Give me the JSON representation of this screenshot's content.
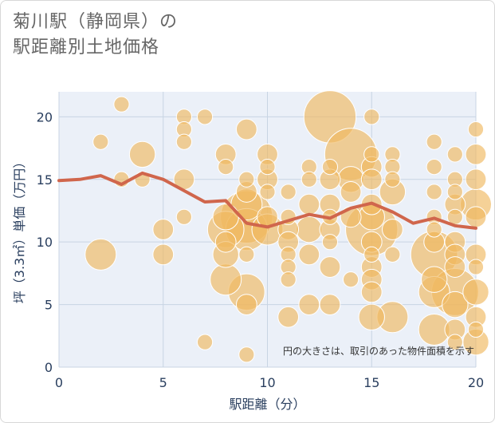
{
  "title_line1": "菊川駅（静岡県）の",
  "title_line2": "駅距離別土地価格",
  "chart_data": {
    "type": "scatter",
    "xlabel": "駅距離（分）",
    "ylabel": "坪（3.3㎡）単価（万円）",
    "xlim": [
      0,
      20
    ],
    "ylim": [
      0,
      22
    ],
    "x_ticks": [
      "0",
      "5",
      "10",
      "15",
      "20"
    ],
    "y_ticks": [
      "0",
      "5",
      "10",
      "15",
      "20"
    ],
    "annotation": "円の大きさは、取引のあった物件面積を示す",
    "colors": {
      "bubble": "#f0b860",
      "bubble_edge": "#ffffff",
      "line": "#d0664c",
      "plot_bg": "#ebf0f8",
      "grid": "#c8d4e3"
    },
    "bubbles": [
      {
        "x": 2,
        "y": 18,
        "s": 2
      },
      {
        "x": 2,
        "y": 9,
        "s": 5
      },
      {
        "x": 3,
        "y": 21,
        "s": 2
      },
      {
        "x": 3,
        "y": 15,
        "s": 2
      },
      {
        "x": 4,
        "y": 17,
        "s": 4
      },
      {
        "x": 4,
        "y": 15,
        "s": 2
      },
      {
        "x": 5,
        "y": 11,
        "s": 3
      },
      {
        "x": 5,
        "y": 9,
        "s": 3
      },
      {
        "x": 6,
        "y": 20,
        "s": 2
      },
      {
        "x": 6,
        "y": 19,
        "s": 2
      },
      {
        "x": 6,
        "y": 18,
        "s": 2
      },
      {
        "x": 6,
        "y": 15,
        "s": 3
      },
      {
        "x": 6,
        "y": 12,
        "s": 2
      },
      {
        "x": 7,
        "y": 20,
        "s": 2
      },
      {
        "x": 7,
        "y": 2,
        "s": 2
      },
      {
        "x": 8,
        "y": 17,
        "s": 3
      },
      {
        "x": 8,
        "y": 16,
        "s": 2
      },
      {
        "x": 8,
        "y": 12,
        "s": 4
      },
      {
        "x": 8,
        "y": 11,
        "s": 6
      },
      {
        "x": 8,
        "y": 10,
        "s": 3
      },
      {
        "x": 8,
        "y": 9,
        "s": 4
      },
      {
        "x": 8,
        "y": 7,
        "s": 5
      },
      {
        "x": 9,
        "y": 19,
        "s": 3
      },
      {
        "x": 9,
        "y": 15,
        "s": 2
      },
      {
        "x": 9,
        "y": 14,
        "s": 3
      },
      {
        "x": 9,
        "y": 13,
        "s": 5
      },
      {
        "x": 9,
        "y": 12,
        "s": 9
      },
      {
        "x": 9,
        "y": 11,
        "s": 7
      },
      {
        "x": 9,
        "y": 9,
        "s": 2
      },
      {
        "x": 9,
        "y": 6,
        "s": 6
      },
      {
        "x": 9,
        "y": 5,
        "s": 3
      },
      {
        "x": 9,
        "y": 1,
        "s": 2
      },
      {
        "x": 10,
        "y": 17,
        "s": 3
      },
      {
        "x": 10,
        "y": 16,
        "s": 2
      },
      {
        "x": 10,
        "y": 15,
        "s": 3
      },
      {
        "x": 10,
        "y": 14,
        "s": 2
      },
      {
        "x": 10,
        "y": 12,
        "s": 3
      },
      {
        "x": 10,
        "y": 11,
        "s": 5
      },
      {
        "x": 11,
        "y": 14,
        "s": 2
      },
      {
        "x": 11,
        "y": 12,
        "s": 2
      },
      {
        "x": 11,
        "y": 11,
        "s": 3
      },
      {
        "x": 11,
        "y": 10,
        "s": 3
      },
      {
        "x": 11,
        "y": 9,
        "s": 2
      },
      {
        "x": 11,
        "y": 8,
        "s": 2
      },
      {
        "x": 11,
        "y": 7,
        "s": 2
      },
      {
        "x": 11,
        "y": 4,
        "s": 3
      },
      {
        "x": 12,
        "y": 16,
        "s": 2
      },
      {
        "x": 12,
        "y": 15,
        "s": 2
      },
      {
        "x": 12,
        "y": 13,
        "s": 3
      },
      {
        "x": 12,
        "y": 11,
        "s": 4
      },
      {
        "x": 12,
        "y": 9,
        "s": 3
      },
      {
        "x": 12,
        "y": 5,
        "s": 3
      },
      {
        "x": 13,
        "y": 20,
        "s": 9
      },
      {
        "x": 13,
        "y": 16,
        "s": 2
      },
      {
        "x": 13,
        "y": 15,
        "s": 3
      },
      {
        "x": 13,
        "y": 13,
        "s": 3
      },
      {
        "x": 13,
        "y": 12,
        "s": 2
      },
      {
        "x": 13,
        "y": 11,
        "s": 3
      },
      {
        "x": 13,
        "y": 10,
        "s": 2
      },
      {
        "x": 13,
        "y": 8,
        "s": 3
      },
      {
        "x": 13,
        "y": 5,
        "s": 3
      },
      {
        "x": 14,
        "y": 17,
        "s": 9
      },
      {
        "x": 14,
        "y": 15,
        "s": 4
      },
      {
        "x": 14,
        "y": 14,
        "s": 3
      },
      {
        "x": 14,
        "y": 12,
        "s": 3
      },
      {
        "x": 14,
        "y": 7,
        "s": 2
      },
      {
        "x": 15,
        "y": 20,
        "s": 2
      },
      {
        "x": 15,
        "y": 17,
        "s": 2
      },
      {
        "x": 15,
        "y": 16,
        "s": 3
      },
      {
        "x": 15,
        "y": 15,
        "s": 3
      },
      {
        "x": 15,
        "y": 13,
        "s": 3
      },
      {
        "x": 15,
        "y": 12,
        "s": 4
      },
      {
        "x": 15,
        "y": 11,
        "s": 9
      },
      {
        "x": 15,
        "y": 10,
        "s": 3
      },
      {
        "x": 15,
        "y": 9,
        "s": 2
      },
      {
        "x": 15,
        "y": 8,
        "s": 3
      },
      {
        "x": 15,
        "y": 7,
        "s": 3
      },
      {
        "x": 15,
        "y": 6,
        "s": 3
      },
      {
        "x": 15,
        "y": 4,
        "s": 4
      },
      {
        "x": 16,
        "y": 17,
        "s": 2
      },
      {
        "x": 16,
        "y": 16,
        "s": 2
      },
      {
        "x": 16,
        "y": 15,
        "s": 2
      },
      {
        "x": 16,
        "y": 14,
        "s": 4
      },
      {
        "x": 16,
        "y": 11,
        "s": 3
      },
      {
        "x": 16,
        "y": 9,
        "s": 2
      },
      {
        "x": 16,
        "y": 4,
        "s": 5
      },
      {
        "x": 18,
        "y": 18,
        "s": 2
      },
      {
        "x": 18,
        "y": 16,
        "s": 2
      },
      {
        "x": 18,
        "y": 14,
        "s": 2
      },
      {
        "x": 18,
        "y": 12,
        "s": 2
      },
      {
        "x": 18,
        "y": 11,
        "s": 2
      },
      {
        "x": 18,
        "y": 10,
        "s": 3
      },
      {
        "x": 18,
        "y": 9,
        "s": 8
      },
      {
        "x": 18,
        "y": 7,
        "s": 4
      },
      {
        "x": 18,
        "y": 6,
        "s": 5
      },
      {
        "x": 18,
        "y": 3,
        "s": 5
      },
      {
        "x": 19,
        "y": 17,
        "s": 2
      },
      {
        "x": 19,
        "y": 15,
        "s": 2
      },
      {
        "x": 19,
        "y": 14,
        "s": 2
      },
      {
        "x": 19,
        "y": 13,
        "s": 3
      },
      {
        "x": 19,
        "y": 12,
        "s": 2
      },
      {
        "x": 19,
        "y": 10,
        "s": 3
      },
      {
        "x": 19,
        "y": 9,
        "s": 3
      },
      {
        "x": 19,
        "y": 8,
        "s": 3
      },
      {
        "x": 19,
        "y": 6,
        "s": 8
      },
      {
        "x": 19,
        "y": 5,
        "s": 4
      },
      {
        "x": 19,
        "y": 3,
        "s": 3
      },
      {
        "x": 19,
        "y": 2,
        "s": 2
      },
      {
        "x": 20,
        "y": 19,
        "s": 2
      },
      {
        "x": 20,
        "y": 17,
        "s": 3
      },
      {
        "x": 20,
        "y": 15,
        "s": 3
      },
      {
        "x": 20,
        "y": 13,
        "s": 5
      },
      {
        "x": 20,
        "y": 12,
        "s": 3
      },
      {
        "x": 20,
        "y": 9,
        "s": 3
      },
      {
        "x": 20,
        "y": 8,
        "s": 2
      },
      {
        "x": 20,
        "y": 6,
        "s": 4
      },
      {
        "x": 20,
        "y": 4,
        "s": 3
      },
      {
        "x": 20,
        "y": 3,
        "s": 2
      },
      {
        "x": 20,
        "y": 2,
        "s": 4
      }
    ],
    "trend": {
      "x": [
        0,
        1,
        2,
        3,
        4,
        5,
        6,
        7,
        8,
        9,
        10,
        11,
        12,
        13,
        14,
        15,
        16,
        17,
        18,
        19,
        20
      ],
      "y": [
        14.9,
        15.0,
        15.3,
        14.6,
        15.5,
        15.0,
        14.1,
        13.2,
        13.3,
        11.5,
        11.2,
        11.7,
        12.2,
        11.9,
        12.7,
        13.1,
        12.4,
        11.5,
        11.9,
        11.3,
        11.1
      ]
    }
  }
}
